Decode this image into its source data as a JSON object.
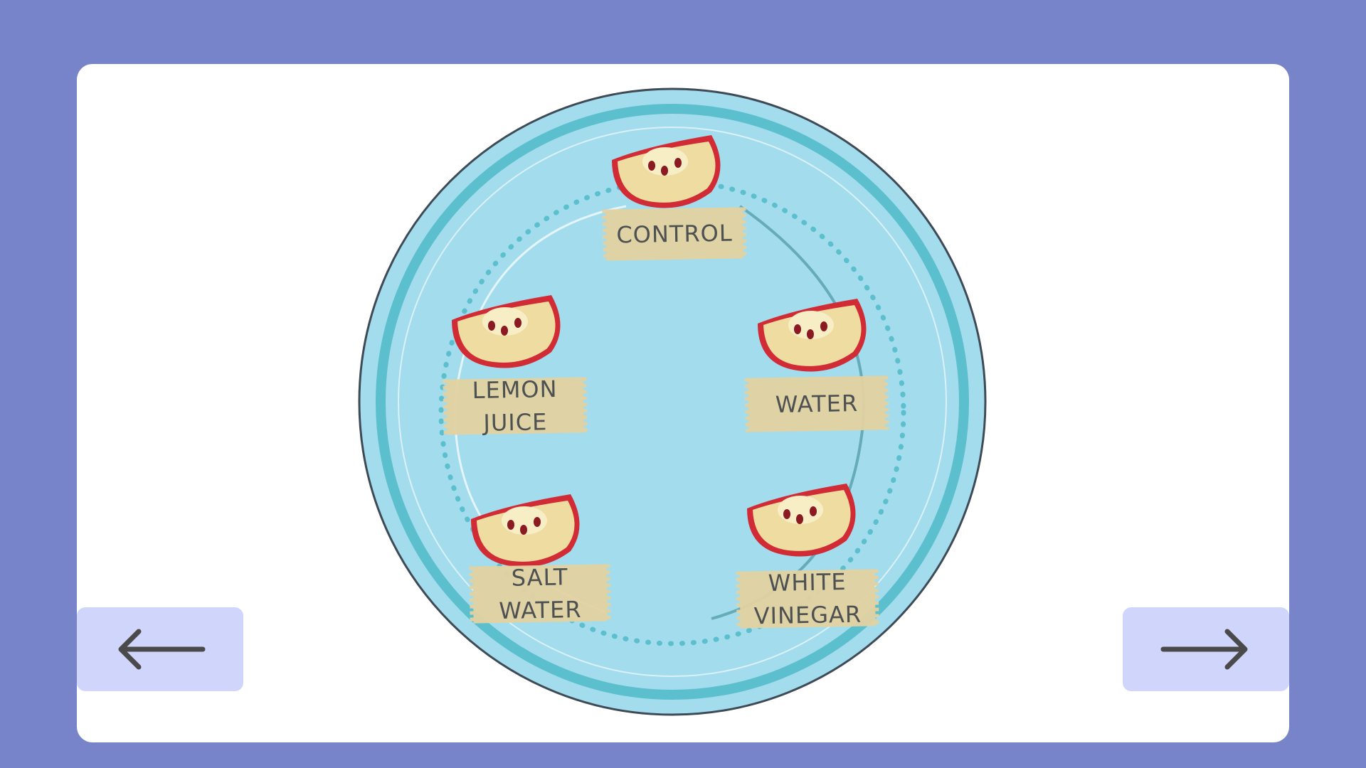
{
  "colors": {
    "background": "#7884ca",
    "card": "#ffffff",
    "nav_button": "#d0d5fc",
    "plate_rim": "#5bbfce",
    "plate_center": "#a3dced",
    "tape": "#e3d2a2",
    "apple_skin": "#d12b36",
    "apple_flesh": "#efdca0"
  },
  "nav": {
    "prev_icon": "arrow-left-icon",
    "next_icon": "arrow-right-icon"
  },
  "labels": {
    "control": "CONTROL",
    "lemon_juice": "LEMON\nJUICE",
    "water": "WATER",
    "salt_water": "SALT\nWATER",
    "white_vinegar": "WHITE\nVINEGAR"
  }
}
